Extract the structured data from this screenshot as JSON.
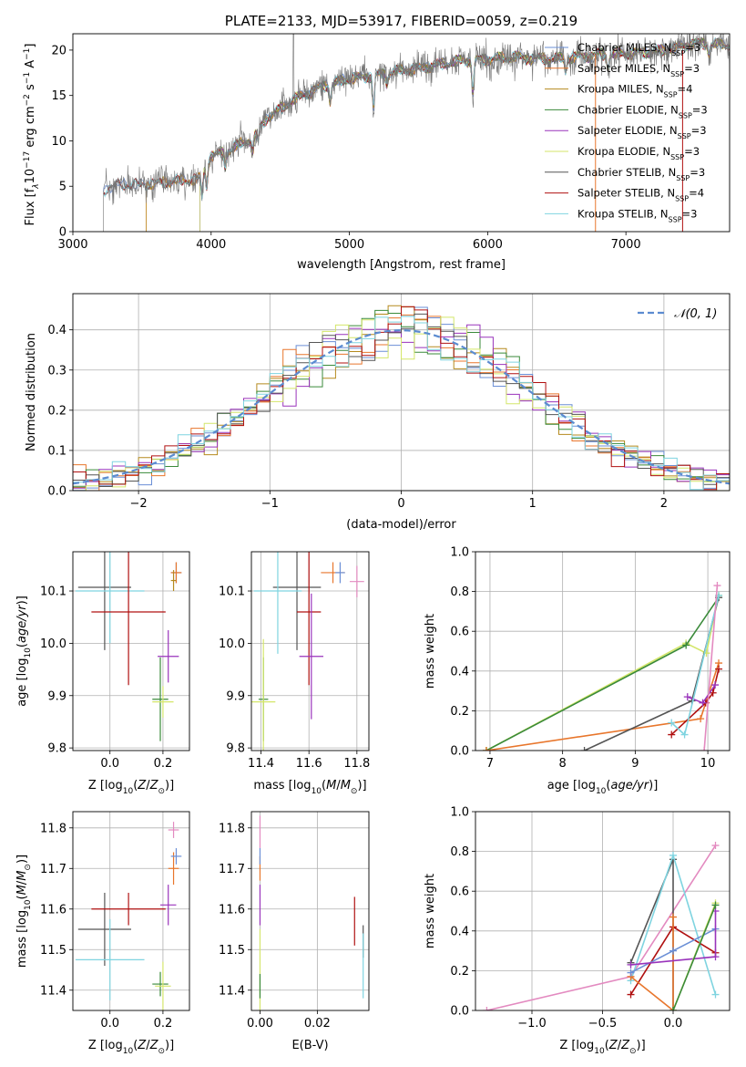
{
  "colors": {
    "Chabrier MILES": "#6b8fd6",
    "Salpeter MILES": "#e8762c",
    "Kroupa MILES": "#b58a1e",
    "Chabrier ELODIE": "#3a8a3a",
    "Salpeter ELODIE": "#9933bb",
    "Kroupa ELODIE": "#d4e66a",
    "Chabrier STELIB": "#555555",
    "Salpeter STELIB": "#b01010",
    "Kroupa STELIB": "#7fd4e0",
    "normal": "#5b8bd0",
    "pink": "#e38ac0",
    "lime": "#a8c84a"
  },
  "chart_data": [
    {
      "id": "spectrum",
      "type": "line",
      "title": "PLATE=2133, MJD=53917, FIBERID=0059, z=0.219",
      "xlabel": "wavelength [Angstrom, rest frame]",
      "ylabel": "Flux [f",
      "xlim": [
        3000,
        7750
      ],
      "ylim": [
        0,
        21.8
      ],
      "xticks": [
        3000,
        4000,
        5000,
        6000,
        7000
      ],
      "yticks": [
        0,
        5,
        10,
        15,
        20
      ],
      "grid": false,
      "legend_position": "top-right",
      "legend": [
        {
          "label": "Chabrier MILES, N",
          "sub": "SSP",
          "val": "=3"
        },
        {
          "label": "Salpeter MILES, N",
          "sub": "SSP",
          "val": "=3"
        },
        {
          "label": "Kroupa MILES, N",
          "sub": "SSP",
          "val": "=4"
        },
        {
          "label": "Chabrier ELODIE, N",
          "sub": "SSP",
          "val": "=3"
        },
        {
          "label": "Salpeter ELODIE, N",
          "sub": "SSP",
          "val": "=3"
        },
        {
          "label": "Kroupa ELODIE, N",
          "sub": "SSP",
          "val": "=3"
        },
        {
          "label": "Chabrier STELIB, N",
          "sub": "SSP",
          "val": "=3"
        },
        {
          "label": "Salpeter STELIB, N",
          "sub": "SSP",
          "val": "=4"
        },
        {
          "label": "Kroupa STELIB, N",
          "sub": "SSP",
          "val": "=3"
        }
      ],
      "continuum": [
        [
          3220,
          4.5
        ],
        [
          3300,
          5.1
        ],
        [
          3500,
          5.2
        ],
        [
          3700,
          5.5
        ],
        [
          3900,
          5.7
        ],
        [
          4000,
          8.4
        ],
        [
          4100,
          8.7
        ],
        [
          4200,
          9.5
        ],
        [
          4300,
          10.3
        ],
        [
          4400,
          12.5
        ],
        [
          4600,
          14.5
        ],
        [
          4800,
          16.0
        ],
        [
          5000,
          16.8
        ],
        [
          5200,
          17.3
        ],
        [
          5500,
          18.0
        ],
        [
          5800,
          18.8
        ],
        [
          6000,
          19.0
        ],
        [
          6200,
          19.2
        ],
        [
          6500,
          19.0
        ],
        [
          6800,
          19.5
        ],
        [
          7000,
          19.6
        ],
        [
          7300,
          20.0
        ],
        [
          7500,
          20.8
        ],
        [
          7750,
          20.5
        ]
      ]
    },
    {
      "id": "residuals",
      "type": "line",
      "xlabel": "(data-model)/error",
      "ylabel": "Normed distribution",
      "xlim": [
        -2.5,
        2.5
      ],
      "ylim": [
        0,
        0.49
      ],
      "xticks": [
        -2,
        -1,
        0,
        1,
        2
      ],
      "yticks": [
        0.0,
        0.1,
        0.2,
        0.3,
        0.4
      ],
      "grid": true,
      "legend_position": "top-right",
      "normal_label": "𝒩(0, 1)",
      "bin_width": 0.1
    },
    {
      "id": "age-Z",
      "type": "scatter",
      "xlabel": "Z [log",
      "ylabel": "age  [log",
      "xlim": [
        -0.14,
        0.3
      ],
      "ylim": [
        9.795,
        10.175
      ],
      "xticks": [
        0.0,
        0.2
      ],
      "yticks": [
        9.8,
        9.9,
        10.0,
        10.1
      ],
      "grid": true,
      "points": [
        {
          "s": "Chabrier STELIB",
          "x": -0.02,
          "y": 10.107,
          "ex": 0.1,
          "ey": 0.12
        },
        {
          "s": "Kroupa STELIB",
          "x": 0.0,
          "y": 10.1,
          "ex": 0.13,
          "ey": 0.1
        },
        {
          "s": "Salpeter STELIB",
          "x": 0.07,
          "y": 10.06,
          "ex": 0.14,
          "ey": 0.14
        },
        {
          "s": "Salpeter ELODIE",
          "x": 0.22,
          "y": 9.975,
          "ex": 0.04,
          "ey": 0.05
        },
        {
          "s": "Chabrier ELODIE",
          "x": 0.19,
          "y": 9.893,
          "ex": 0.03,
          "ey": 0.08
        },
        {
          "s": "Kroupa ELODIE",
          "x": 0.2,
          "y": 9.888,
          "ex": 0.04,
          "ey": 0.03
        },
        {
          "s": "Chabrier MILES",
          "x": 0.25,
          "y": 10.135,
          "ex": 0.02,
          "ey": 0.02
        },
        {
          "s": "Salpeter MILES",
          "x": 0.25,
          "y": 10.135,
          "ex": 0.02,
          "ey": 0.02
        },
        {
          "s": "Kroupa MILES",
          "x": 0.24,
          "y": 10.12,
          "ex": 0.01,
          "ey": 0.02
        }
      ]
    },
    {
      "id": "age-mass",
      "type": "scatter",
      "xlabel": "mass [log",
      "ylabel": "",
      "xlim": [
        11.36,
        11.85
      ],
      "ylim": [
        9.795,
        10.175
      ],
      "xticks": [
        11.4,
        11.6,
        11.8
      ],
      "yticks": [
        9.8,
        9.9,
        10.0,
        10.1
      ],
      "grid": true,
      "points": [
        {
          "s": "Chabrier STELIB",
          "x": 11.55,
          "y": 10.107,
          "ex": 0.1,
          "ey": 0.12
        },
        {
          "s": "Kroupa STELIB",
          "x": 11.47,
          "y": 10.1,
          "ex": 0.1,
          "ey": 0.12
        },
        {
          "s": "Salpeter STELIB",
          "x": 11.6,
          "y": 10.06,
          "ex": 0.05,
          "ey": 0.14
        },
        {
          "s": "Salpeter ELODIE",
          "x": 11.61,
          "y": 9.975,
          "ex": 0.05,
          "ey": 0.12
        },
        {
          "s": "Chabrier ELODIE",
          "x": 11.41,
          "y": 9.893,
          "ex": 0.02,
          "ey": 0.08
        },
        {
          "s": "Kroupa ELODIE",
          "x": 11.41,
          "y": 9.888,
          "ex": 0.05,
          "ey": 0.12
        },
        {
          "s": "Salpeter MILES",
          "x": 11.7,
          "y": 10.135,
          "ex": 0.05,
          "ey": 0.02
        },
        {
          "s": "Chabrier MILES",
          "x": 11.73,
          "y": 10.135,
          "ex": 0.02,
          "ey": 0.02
        },
        {
          "s": "pink",
          "x": 11.8,
          "y": 10.118,
          "ex": 0.03,
          "ey": 0.03
        }
      ]
    },
    {
      "id": "massweight-age",
      "type": "line",
      "xlabel": "age  [log",
      "ylabel": "mass weight",
      "xlim": [
        6.8,
        10.3
      ],
      "ylim": [
        0.0,
        1.0
      ],
      "xticks": [
        7,
        8,
        9,
        10
      ],
      "yticks": [
        0.0,
        0.2,
        0.4,
        0.6,
        0.8,
        1.0
      ],
      "grid": true,
      "series": [
        {
          "s": "Kroupa ELODIE",
          "pts": [
            [
              6.95,
              0.0
            ],
            [
              9.7,
              0.54
            ],
            [
              9.98,
              0.49
            ],
            [
              10.15,
              0.78
            ]
          ]
        },
        {
          "s": "Chabrier ELODIE",
          "pts": [
            [
              6.95,
              0.0
            ],
            [
              9.7,
              0.53
            ],
            [
              10.15,
              0.77
            ]
          ]
        },
        {
          "s": "Salpeter MILES",
          "pts": [
            [
              6.95,
              0.0
            ],
            [
              9.9,
              0.16
            ],
            [
              10.15,
              0.44
            ]
          ]
        },
        {
          "s": "Chabrier STELIB",
          "pts": [
            [
              8.3,
              0.0
            ],
            [
              9.78,
              0.25
            ],
            [
              10.15,
              0.77
            ]
          ]
        },
        {
          "s": "Salpeter STELIB",
          "pts": [
            [
              9.5,
              0.08
            ],
            [
              9.97,
              0.24
            ],
            [
              10.07,
              0.29
            ],
            [
              10.15,
              0.41
            ]
          ]
        },
        {
          "s": "Salpeter ELODIE",
          "pts": [
            [
              9.72,
              0.27
            ],
            [
              9.93,
              0.24
            ],
            [
              10.1,
              0.33
            ]
          ]
        },
        {
          "s": "Kroupa STELIB",
          "pts": [
            [
              9.5,
              0.14
            ],
            [
              9.68,
              0.08
            ],
            [
              10.15,
              0.78
            ]
          ]
        },
        {
          "s": "pink",
          "pts": [
            [
              9.95,
              0.0
            ],
            [
              10.13,
              0.83
            ]
          ]
        }
      ]
    },
    {
      "id": "mass-Z",
      "type": "scatter",
      "xlabel": "Z [log",
      "ylabel": "mass [log",
      "xlim": [
        -0.14,
        0.3
      ],
      "ylim": [
        11.35,
        11.84
      ],
      "xticks": [
        0.0,
        0.2
      ],
      "yticks": [
        11.4,
        11.5,
        11.6,
        11.7,
        11.8
      ],
      "grid": true,
      "points": [
        {
          "s": "Chabrier STELIB",
          "x": -0.02,
          "y": 11.55,
          "ex": 0.1,
          "ey": 0.09
        },
        {
          "s": "Kroupa STELIB",
          "x": 0.0,
          "y": 11.475,
          "ex": 0.13,
          "ey": 0.1
        },
        {
          "s": "Salpeter STELIB",
          "x": 0.07,
          "y": 11.6,
          "ex": 0.14,
          "ey": 0.04
        },
        {
          "s": "Salpeter ELODIE",
          "x": 0.22,
          "y": 11.61,
          "ex": 0.03,
          "ey": 0.05
        },
        {
          "s": "Chabrier ELODIE",
          "x": 0.19,
          "y": 11.415,
          "ex": 0.03,
          "ey": 0.03
        },
        {
          "s": "Kroupa ELODIE",
          "x": 0.2,
          "y": 11.41,
          "ex": 0.03,
          "ey": 0.06
        },
        {
          "s": "Salpeter MILES",
          "x": 0.24,
          "y": 11.7,
          "ex": 0.02,
          "ey": 0.04
        },
        {
          "s": "Chabrier MILES",
          "x": 0.25,
          "y": 11.73,
          "ex": 0.02,
          "ey": 0.02
        },
        {
          "s": "pink",
          "x": 0.24,
          "y": 11.795,
          "ex": 0.02,
          "ey": 0.02
        }
      ]
    },
    {
      "id": "mass-EBV",
      "type": "scatter",
      "xlabel": "E(B-V)",
      "ylabel": "",
      "xlim": [
        -0.003,
        0.038
      ],
      "ylim": [
        11.35,
        11.84
      ],
      "xticks": [
        0.0,
        0.02
      ],
      "yticks": [
        11.4,
        11.5,
        11.6,
        11.7,
        11.8
      ],
      "grid": true,
      "points": [
        {
          "s": "pink",
          "x": 0.0,
          "y": 11.79,
          "ex": 0,
          "ey": 0.04
        },
        {
          "s": "Salpeter MILES",
          "x": 0.0,
          "y": 11.7,
          "ex": 0,
          "ey": 0.03
        },
        {
          "s": "Chabrier MILES",
          "x": 0.0,
          "y": 11.73,
          "ex": 0,
          "ey": 0.02
        },
        {
          "s": "Salpeter ELODIE",
          "x": 0.0,
          "y": 11.61,
          "ex": 0,
          "ey": 0.05
        },
        {
          "s": "Kroupa ELODIE",
          "x": 0.0,
          "y": 11.45,
          "ex": 0,
          "ey": 0.1
        },
        {
          "s": "Chabrier ELODIE",
          "x": 0.0,
          "y": 11.41,
          "ex": 0,
          "ey": 0.03
        },
        {
          "s": "Salpeter STELIB",
          "x": 0.033,
          "y": 11.57,
          "ex": 0,
          "ey": 0.06
        },
        {
          "s": "Chabrier STELIB",
          "x": 0.036,
          "y": 11.52,
          "ex": 0,
          "ey": 0.04
        },
        {
          "s": "Kroupa STELIB",
          "x": 0.036,
          "y": 11.46,
          "ex": 0,
          "ey": 0.08
        }
      ]
    },
    {
      "id": "massweight-Z",
      "type": "line",
      "xlabel": "Z [log",
      "ylabel": "mass weight",
      "xlim": [
        -1.4,
        0.4
      ],
      "ylim": [
        0.0,
        1.0
      ],
      "xticks": [
        -1.0,
        -0.5,
        0.0
      ],
      "yticks": [
        0.0,
        0.2,
        0.4,
        0.6,
        0.8,
        1.0
      ],
      "grid": true,
      "series": [
        {
          "s": "pink",
          "pts": [
            [
              -1.32,
              0.0
            ],
            [
              -0.3,
              0.17
            ],
            [
              0.3,
              0.83
            ]
          ]
        },
        {
          "s": "Chabrier STELIB",
          "pts": [
            [
              -0.3,
              0.24
            ],
            [
              0.0,
              0.76
            ],
            [
              0.0,
              0.0
            ]
          ]
        },
        {
          "s": "Kroupa STELIB",
          "pts": [
            [
              -0.3,
              0.15
            ],
            [
              0.0,
              0.78
            ],
            [
              0.3,
              0.08
            ]
          ]
        },
        {
          "s": "Salpeter STELIB",
          "pts": [
            [
              -0.3,
              0.08
            ],
            [
              0.0,
              0.42
            ],
            [
              0.3,
              0.29
            ]
          ]
        },
        {
          "s": "Salpeter MILES",
          "pts": [
            [
              -0.3,
              0.17
            ],
            [
              0.0,
              0.0
            ],
            [
              0.0,
              0.47
            ]
          ]
        },
        {
          "s": "Chabrier MILES",
          "pts": [
            [
              -0.3,
              0.19
            ],
            [
              0.0,
              0.3
            ],
            [
              0.3,
              0.41
            ]
          ]
        },
        {
          "s": "Salpeter ELODIE",
          "pts": [
            [
              -0.3,
              0.23
            ],
            [
              0.3,
              0.27
            ],
            [
              0.3,
              0.5
            ]
          ]
        },
        {
          "s": "Kroupa ELODIE",
          "pts": [
            [
              0.0,
              0.0
            ],
            [
              0.3,
              0.54
            ]
          ]
        },
        {
          "s": "Chabrier ELODIE",
          "pts": [
            [
              0.0,
              0.0
            ],
            [
              0.3,
              0.53
            ]
          ]
        }
      ]
    }
  ]
}
